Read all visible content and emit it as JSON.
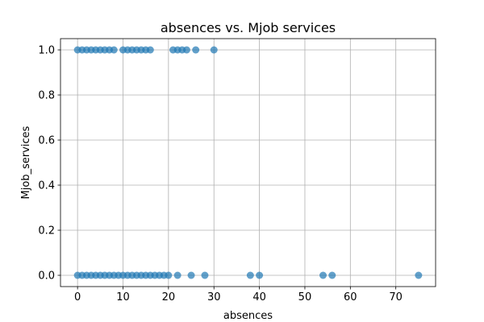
{
  "chart_data": {
    "type": "scatter",
    "title": "absences vs. Mjob services",
    "xlabel": "absences",
    "ylabel": "Mjob_services",
    "xlim": [
      -3.75,
      78.75
    ],
    "ylim": [
      -0.05,
      1.05
    ],
    "xticks": [
      0,
      10,
      20,
      30,
      40,
      50,
      60,
      70
    ],
    "yticks": [
      0.0,
      0.2,
      0.4,
      0.6,
      0.8,
      1.0
    ],
    "xtick_labels": [
      "0",
      "10",
      "20",
      "30",
      "40",
      "50",
      "60",
      "70"
    ],
    "ytick_labels": [
      "0.0",
      "0.2",
      "0.4",
      "0.6",
      "0.8",
      "1.0"
    ],
    "grid": true,
    "marker_color": "#1f77b4",
    "marker_alpha": 0.7,
    "series": [
      {
        "name": "Mjob_services = 1",
        "y": 1,
        "x": [
          0,
          1,
          2,
          3,
          4,
          5,
          6,
          7,
          8,
          10,
          11,
          12,
          13,
          14,
          15,
          16,
          21,
          22,
          23,
          24,
          26,
          30
        ]
      },
      {
        "name": "Mjob_services = 0",
        "y": 0,
        "x": [
          0,
          1,
          2,
          3,
          4,
          5,
          6,
          7,
          8,
          9,
          10,
          11,
          12,
          13,
          14,
          15,
          16,
          17,
          18,
          19,
          20,
          22,
          25,
          28,
          38,
          40,
          54,
          56,
          75
        ]
      }
    ]
  }
}
